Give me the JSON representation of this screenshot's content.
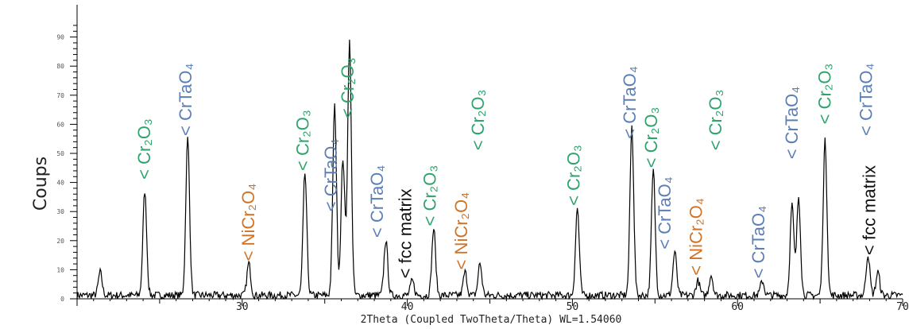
{
  "chart_data": {
    "type": "line",
    "ylabel": "Coups",
    "xlabel": "2Theta (Coupled TwoTheta/Theta) WL=1.54060",
    "xlim": [
      20,
      70
    ],
    "ylim": [
      0,
      100
    ],
    "x_ticks": [
      30,
      40,
      50,
      60,
      70
    ],
    "y_ticks": [
      0,
      10,
      20,
      30,
      40,
      50,
      60,
      70,
      80,
      90
    ],
    "grid": false,
    "series": [
      {
        "peaks": [
          {
            "x": 21.4,
            "y": 8
          },
          {
            "x": 24.1,
            "y": 36
          },
          {
            "x": 26.7,
            "y": 54
          },
          {
            "x": 30.4,
            "y": 11
          },
          {
            "x": 33.8,
            "y": 42
          },
          {
            "x": 35.6,
            "y": 65
          },
          {
            "x": 36.1,
            "y": 47
          },
          {
            "x": 36.5,
            "y": 87
          },
          {
            "x": 38.7,
            "y": 19
          },
          {
            "x": 40.3,
            "y": 5
          },
          {
            "x": 41.6,
            "y": 23
          },
          {
            "x": 43.5,
            "y": 8
          },
          {
            "x": 44.4,
            "y": 11
          },
          {
            "x": 50.3,
            "y": 30
          },
          {
            "x": 53.6,
            "y": 58
          },
          {
            "x": 54.9,
            "y": 43
          },
          {
            "x": 56.2,
            "y": 15
          },
          {
            "x": 57.6,
            "y": 5
          },
          {
            "x": 58.4,
            "y": 7
          },
          {
            "x": 61.5,
            "y": 5
          },
          {
            "x": 63.3,
            "y": 31
          },
          {
            "x": 63.7,
            "y": 34
          },
          {
            "x": 65.3,
            "y": 53
          },
          {
            "x": 67.9,
            "y": 14
          },
          {
            "x": 68.5,
            "y": 8
          }
        ]
      }
    ],
    "annotations": [
      {
        "x": 24.1,
        "y": 41,
        "phase": "Cr2O3",
        "text": "< Cr₂O₃",
        "color": "#2ea36c"
      },
      {
        "x": 26.6,
        "y": 56,
        "phase": "CrTaO4",
        "text": "< CrTaO₄",
        "color": "#5a7fb5"
      },
      {
        "x": 30.4,
        "y": 13,
        "phase": "NiCr2O4",
        "text": "< NiCr₂O₄",
        "color": "#d07326"
      },
      {
        "x": 33.7,
        "y": 44,
        "phase": "Cr2O3",
        "text": "< Cr₂O₃",
        "color": "#2ea36c"
      },
      {
        "x": 35.4,
        "y": 30,
        "phase": "CrTaO4",
        "text": "< CrTaO₄",
        "color": "#5a7fb5"
      },
      {
        "x": 36.4,
        "y": 62,
        "phase": "Cr2O3",
        "text": "< Cr₂O₃",
        "color": "#2ea36c"
      },
      {
        "x": 38.2,
        "y": 21,
        "phase": "CrTaO4",
        "text": "< CrTaO₄",
        "color": "#5a7fb5"
      },
      {
        "x": 39.9,
        "y": 7,
        "phase": "fcc matrix",
        "text": "< fcc matrix",
        "color": "#111111"
      },
      {
        "x": 41.4,
        "y": 25,
        "phase": "Cr2O3",
        "text": "< Cr₂O₃",
        "color": "#2ea36c"
      },
      {
        "x": 43.3,
        "y": 10,
        "phase": "NiCr2O4",
        "text": "< NiCr₂O₄",
        "color": "#d07326"
      },
      {
        "x": 44.3,
        "y": 51,
        "phase": "Cr2O3",
        "text": "< Cr₂O₃",
        "color": "#2ea36c"
      },
      {
        "x": 50.1,
        "y": 32,
        "phase": "Cr2O3",
        "text": "< Cr₂O₃",
        "color": "#2ea36c"
      },
      {
        "x": 53.5,
        "y": 55,
        "phase": "CrTaO4",
        "text": "< CrTaO₄",
        "color": "#5a7fb5"
      },
      {
        "x": 54.8,
        "y": 45,
        "phase": "Cr2O3",
        "text": "< Cr₂O₃",
        "color": "#2ea36c"
      },
      {
        "x": 55.6,
        "y": 17,
        "phase": "CrTaO4",
        "text": "< CrTaO₄",
        "color": "#5a7fb5"
      },
      {
        "x": 57.5,
        "y": 8,
        "phase": "NiCr2O4",
        "text": "< NiCr₂O₄",
        "color": "#d07326"
      },
      {
        "x": 58.7,
        "y": 51,
        "phase": "Cr2O3",
        "text": "< Cr₂O₃",
        "color": "#2ea36c"
      },
      {
        "x": 61.3,
        "y": 7,
        "phase": "CrTaO4",
        "text": "< CrTaO₄",
        "color": "#5a7fb5"
      },
      {
        "x": 63.3,
        "y": 48,
        "phase": "CrTaO4",
        "text": "< CrTaO₄",
        "color": "#5a7fb5"
      },
      {
        "x": 65.3,
        "y": 60,
        "phase": "Cr2O3",
        "text": "< Cr₂O₃",
        "color": "#2ea36c"
      },
      {
        "x": 67.8,
        "y": 56,
        "phase": "CrTaO4",
        "text": "< CrTaO₄",
        "color": "#5a7fb5"
      },
      {
        "x": 68.0,
        "y": 15,
        "phase": "fcc matrix",
        "text": "< fcc matrix",
        "color": "#111111"
      }
    ]
  }
}
